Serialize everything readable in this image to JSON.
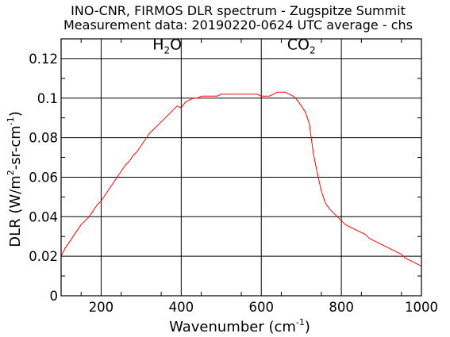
{
  "chart_data": {
    "type": "line",
    "title": "INO-CNR, FIRMOS DLR spectrum - Zugspitze Summit",
    "subtitle": "Measurement data: 20190220-0624 UTC average - chs",
    "xlabel": {
      "main": "Wavenumber (cm",
      "sup": "-1",
      "close": ")"
    },
    "ylabel": {
      "main": "DLR (W/m",
      "sup1": "2",
      "mid": "-sr-cm",
      "sup2": "-1",
      "close": ")"
    },
    "xlim": [
      100,
      1000
    ],
    "ylim": [
      0,
      0.13
    ],
    "x_ticks": [
      200,
      400,
      600,
      800,
      1000
    ],
    "x_tick_labels": [
      "200",
      "400",
      "600",
      "800",
      "1000"
    ],
    "y_ticks": [
      0,
      0.02,
      0.04,
      0.06,
      0.08,
      0.1,
      0.12
    ],
    "y_tick_labels": [
      "0",
      "0.02",
      "0.04",
      "0.06",
      "0.08",
      "0.1",
      "0.12"
    ],
    "grid": true,
    "series_color": "#ff0000",
    "annotations": [
      {
        "base": "H",
        "sub": "2",
        "rest": "O",
        "x": 365,
        "y": 0.127
      },
      {
        "base": "CO",
        "sub": "2",
        "rest": "",
        "x": 700,
        "y": 0.127
      }
    ],
    "series": [
      {
        "x": [
          100,
          110,
          120,
          130,
          140,
          150,
          160,
          170,
          180,
          190,
          200,
          210,
          220,
          230,
          240,
          250,
          260,
          270,
          280,
          290,
          300,
          310,
          320,
          330,
          340,
          350,
          360,
          370,
          380,
          390,
          400,
          410,
          420,
          430,
          440,
          450,
          460,
          470,
          480,
          490,
          500,
          510,
          520,
          530,
          540,
          550,
          560,
          570,
          580,
          590,
          600,
          610,
          620,
          630,
          640,
          650,
          660,
          670,
          680,
          690,
          700,
          710,
          720,
          730,
          740,
          750,
          760,
          770,
          780,
          790,
          800,
          810,
          820,
          830,
          840,
          850,
          860,
          870,
          880,
          890,
          900,
          910,
          920,
          930,
          940,
          950,
          960,
          970,
          980,
          990,
          1000
        ],
        "y": [
          0.02,
          0.024,
          0.027,
          0.03,
          0.033,
          0.036,
          0.038,
          0.04,
          0.043,
          0.046,
          0.048,
          0.051,
          0.054,
          0.057,
          0.06,
          0.063,
          0.066,
          0.068,
          0.071,
          0.073,
          0.076,
          0.079,
          0.082,
          0.084,
          0.086,
          0.088,
          0.09,
          0.092,
          0.094,
          0.096,
          0.095,
          0.098,
          0.099,
          0.1,
          0.1,
          0.101,
          0.101,
          0.101,
          0.101,
          0.101,
          0.102,
          0.102,
          0.102,
          0.102,
          0.102,
          0.102,
          0.102,
          0.102,
          0.102,
          0.102,
          0.101,
          0.101,
          0.101,
          0.102,
          0.103,
          0.103,
          0.103,
          0.102,
          0.101,
          0.099,
          0.096,
          0.093,
          0.087,
          0.072,
          0.062,
          0.053,
          0.047,
          0.044,
          0.042,
          0.04,
          0.038,
          0.036,
          0.035,
          0.034,
          0.033,
          0.032,
          0.031,
          0.029,
          0.028,
          0.027,
          0.026,
          0.025,
          0.024,
          0.023,
          0.022,
          0.021,
          0.019,
          0.018,
          0.017,
          0.016,
          0.015
        ]
      }
    ]
  }
}
